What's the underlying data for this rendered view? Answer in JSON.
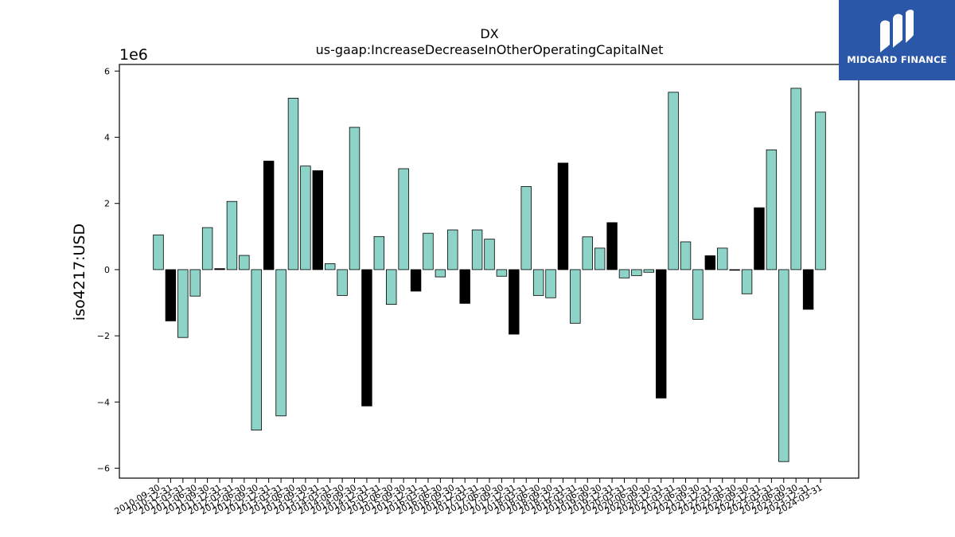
{
  "chart_data": {
    "type": "bar",
    "title": "DX",
    "subtitle": "us-gaap:IncreaseDecreaseInOtherOperatingCapitalNet",
    "ylabel": "iso4217:USD",
    "xlabel": "",
    "y_multiplier_label": "1e6",
    "ylim": [
      -6.3,
      6.2
    ],
    "yticks": [
      -6,
      -4,
      -2,
      0,
      2,
      4,
      6
    ],
    "ytick_labels": [
      "−6",
      "−4",
      "−2",
      "0",
      "2",
      "4",
      "6"
    ],
    "grid": false,
    "legend": "none",
    "colors": {
      "default": "#8dd3c7",
      "highlight": "#000000",
      "edge": "#000000"
    },
    "categories": [
      "2010-09-30",
      "2010-12-31",
      "2011-03-31",
      "2011-06-30",
      "2011-09-30",
      "2011-12-31",
      "2012-03-31",
      "2012-06-30",
      "2012-09-30",
      "2012-12-31",
      "2013-03-31",
      "2013-06-30",
      "2013-09-30",
      "2013-12-31",
      "2014-03-31",
      "2014-06-30",
      "2014-09-30",
      "2014-12-31",
      "2015-03-31",
      "2015-06-30",
      "2015-09-30",
      "2015-12-31",
      "2016-03-31",
      "2016-06-30",
      "2016-09-30",
      "2016-12-31",
      "2017-03-31",
      "2017-06-30",
      "2017-09-30",
      "2017-12-31",
      "2018-03-31",
      "2018-06-30",
      "2018-09-30",
      "2018-12-31",
      "2019-03-31",
      "2019-06-30",
      "2019-09-30",
      "2019-12-31",
      "2020-03-31",
      "2020-06-30",
      "2020-09-30",
      "2020-12-31",
      "2021-03-31",
      "2021-06-30",
      "2021-09-30",
      "2021-12-31",
      "2022-03-31",
      "2022-06-30",
      "2022-09-30",
      "2022-12-31",
      "2023-03-31",
      "2023-06-30",
      "2023-09-30",
      "2023-12-31",
      "2024-03-31"
    ],
    "values": [
      1.05,
      -1.55,
      -2.05,
      -0.8,
      1.27,
      0.03,
      2.06,
      0.43,
      -4.85,
      3.28,
      -4.42,
      5.18,
      3.13,
      2.99,
      0.18,
      -0.78,
      4.3,
      -4.12,
      1.0,
      -1.05,
      3.05,
      -0.65,
      1.1,
      -0.22,
      1.2,
      -1.02,
      1.2,
      0.92,
      -0.2,
      -1.95,
      2.51,
      -0.78,
      -0.85,
      3.22,
      -1.62,
      0.99,
      0.65,
      1.42,
      -0.25,
      -0.18,
      -0.08,
      -3.88,
      5.36,
      0.84,
      -1.5,
      0.42,
      0.65,
      -0.02,
      -0.73,
      1.87,
      3.62,
      -5.8,
      5.48,
      -1.2,
      4.76
    ],
    "highlight": [
      false,
      true,
      false,
      false,
      false,
      true,
      false,
      false,
      false,
      true,
      false,
      false,
      false,
      true,
      false,
      false,
      false,
      true,
      false,
      false,
      false,
      true,
      false,
      false,
      false,
      true,
      false,
      false,
      false,
      true,
      false,
      false,
      false,
      true,
      false,
      false,
      false,
      true,
      false,
      false,
      false,
      true,
      false,
      false,
      false,
      true,
      false,
      false,
      false,
      true,
      false,
      false,
      false,
      true,
      false
    ]
  },
  "watermark": {
    "name": "MIDGARD FINANCE",
    "background": "#2b57a8"
  }
}
